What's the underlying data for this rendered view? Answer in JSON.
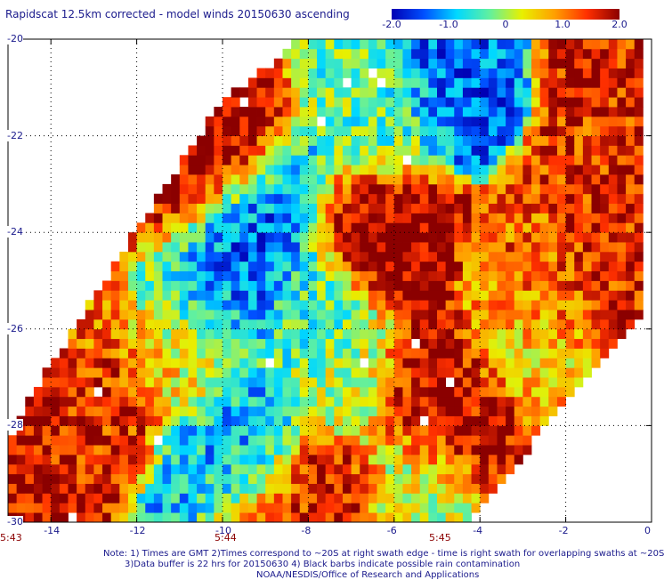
{
  "chart_data": {
    "type": "heatmap",
    "title": "Rapidscat 12.5km corrected - model winds 20150630 ascending",
    "colorbar": {
      "range": [
        -2.0,
        2.0
      ],
      "tick_labels": [
        "-2.0",
        "-1.0",
        "0",
        "1.0",
        "2.0"
      ],
      "tick_values": [
        -2.0,
        -1.0,
        0,
        1.0,
        2.0
      ],
      "colors": [
        "#0000b4",
        "#0050ff",
        "#00d8ff",
        "#60f0a0",
        "#e8f000",
        "#ffa000",
        "#ff3000",
        "#8b0000"
      ]
    },
    "xlim": [
      -15,
      0
    ],
    "ylim": [
      -30,
      -20
    ],
    "x_tick_labels": [
      "-14",
      "-12",
      "-10",
      "-8",
      "-6",
      "-4",
      "-2",
      "0"
    ],
    "x_tick_values": [
      -14,
      -12,
      -10,
      -8,
      -6,
      -4,
      -2,
      0
    ],
    "y_tick_labels": [
      "-20",
      "-22",
      "-24",
      "-26",
      "-28",
      "-30"
    ],
    "y_tick_values": [
      -20,
      -22,
      -24,
      -26,
      -28,
      -30
    ],
    "grid": true,
    "swath_times": [
      {
        "label": "5:43",
        "x": -15.0
      },
      {
        "label": "5:44",
        "x": -10.0
      },
      {
        "label": "5:45",
        "x": -5.0
      }
    ],
    "regions": [
      {
        "lon": -9.5,
        "lat": -24.5,
        "value": -1.6
      },
      {
        "lon": -8.8,
        "lat": -23.5,
        "value": -1.2
      },
      {
        "lon": -10.5,
        "lat": -25.0,
        "value": -0.8
      },
      {
        "lon": -10.0,
        "lat": -22.2,
        "value": 2.0
      },
      {
        "lon": -11.5,
        "lat": -23.0,
        "value": 1.6
      },
      {
        "lon": -6.5,
        "lat": -24.0,
        "value": 2.0
      },
      {
        "lon": -5.2,
        "lat": -27.3,
        "value": 2.0
      },
      {
        "lon": -4.3,
        "lat": -27.8,
        "value": 1.8
      },
      {
        "lon": -12.8,
        "lat": -27.5,
        "value": 1.5
      },
      {
        "lon": -14.7,
        "lat": -27.5,
        "value": 1.8
      },
      {
        "lon": -9.5,
        "lat": -28.5,
        "value": -1.0
      },
      {
        "lon": -10.0,
        "lat": -29.0,
        "value": -0.9
      },
      {
        "lon": -7.7,
        "lat": -29.5,
        "value": 1.8
      },
      {
        "lon": -9.0,
        "lat": -29.8,
        "value": 1.4
      },
      {
        "lon": -4.5,
        "lat": -20.6,
        "value": -1.4
      },
      {
        "lon": -1.0,
        "lat": -20.5,
        "value": 1.6
      },
      {
        "lon": -1.2,
        "lat": -23.0,
        "value": 1.5
      },
      {
        "lon": -0.5,
        "lat": -24.5,
        "value": 1.6
      },
      {
        "lon": -2.5,
        "lat": -24.8,
        "value": 1.2
      },
      {
        "lon": -6.5,
        "lat": -21.5,
        "value": -0.3
      },
      {
        "lon": -11.0,
        "lat": -26.5,
        "value": 0.4
      },
      {
        "lon": -8.0,
        "lat": -25.5,
        "value": -0.5
      },
      {
        "lon": -3.0,
        "lat": -26.5,
        "value": 0.6
      },
      {
        "lon": -5.5,
        "lat": -29.3,
        "value": 0.2
      },
      {
        "lon": -13.5,
        "lat": -25.8,
        "value": 1.1
      },
      {
        "lon": -7.0,
        "lat": -27.0,
        "value": 0.0
      }
    ]
  },
  "notes": [
    "Note: 1) Times are GMT 2)Times correspond to ~20S at right swath edge - time is right swath for overlapping swaths at ~20S",
    "3)Data buffer is 22 hrs for 20150630 4) Black barbs indicate possible rain contamination",
    "NOAA/NESDIS/Office of Research and Applications"
  ]
}
